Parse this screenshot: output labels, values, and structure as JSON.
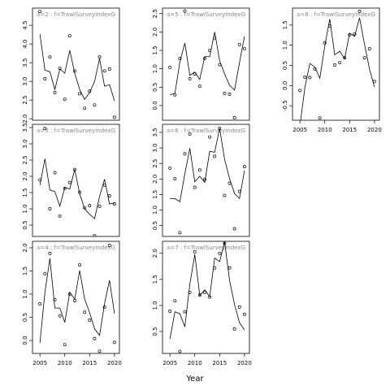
{
  "xlabel": "Year",
  "chart_data": [
    {
      "type": "line",
      "title": "a=2  :  f=TrawlSurveyIndexG",
      "x": [
        2005,
        2006,
        2007,
        2008,
        2009,
        2010,
        2011,
        2012,
        2013,
        2014,
        2015,
        2016,
        2017,
        2018,
        2019,
        2020
      ],
      "xlim": [
        2003.5,
        2021
      ],
      "ylim": [
        1.96,
        4.96
      ],
      "yticks": [
        {
          "value": 2,
          "label": "2.0"
        },
        2.5,
        {
          "value": 3,
          "label": "3.0"
        },
        3.5,
        {
          "value": 4,
          "label": "4.0"
        },
        4.5
      ],
      "series": [
        {
          "style": "points",
          "color": "#000000",
          "values": [
            4.87,
            3.07,
            3.65,
            2.7,
            3.35,
            2.52,
            4.22,
            3.28,
            2.67,
            2.28,
            2.74,
            2.37,
            3.65,
            3.28,
            3.33,
            2.04
          ]
        },
        {
          "style": "line",
          "color": "#000000",
          "values": [
            4.26,
            3.3,
            3.26,
            2.78,
            3.33,
            3.22,
            3.83,
            3.22,
            2.78,
            2.52,
            2.7,
            3.0,
            3.61,
            2.87,
            2.91,
            2.48
          ]
        }
      ]
    },
    {
      "type": "line",
      "title": "a=3  :  f=TrawlSurveyIndexG",
      "x": [
        2005,
        2006,
        2007,
        2008,
        2009,
        2010,
        2011,
        2012,
        2013,
        2014,
        2015,
        2016,
        2017,
        2018,
        2019,
        2020
      ],
      "xlim": [
        2003.5,
        2021
      ],
      "ylim": [
        0.15,
        3.6
      ],
      "yticks": [
        0.5,
        {
          "value": 1,
          "label": "1.0"
        },
        1.5,
        {
          "value": 2,
          "label": "2.0"
        },
        2.5,
        {
          "value": 3,
          "label": "3.0"
        },
        3.5
      ],
      "series": [
        {
          "style": "points",
          "color": "#000000",
          "values": [
            1.89,
            3.47,
            1.0,
            2.11,
            0.78,
            1.63,
            1.81,
            2.21,
            1.51,
            1.03,
            1.1,
            0.17,
            1.08,
            1.73,
            1.4,
            1.15
          ]
        },
        {
          "style": "line",
          "color": "#000000",
          "values": [
            1.73,
            2.54,
            1.58,
            1.53,
            1.08,
            1.66,
            1.61,
            2.21,
            1.46,
            1.0,
            0.83,
            0.7,
            1.38,
            1.91,
            1.15,
            1.18
          ]
        }
      ]
    },
    {
      "type": "line",
      "title": "a=4  :  f=TrawlSurveyIndexG",
      "x": [
        2005,
        2006,
        2007,
        2008,
        2009,
        2010,
        2011,
        2012,
        2013,
        2014,
        2015,
        2016,
        2017,
        2018,
        2019,
        2020
      ],
      "xlim": [
        2003.5,
        2021
      ],
      "xticks": [
        2005,
        2010,
        2015,
        2020
      ],
      "ylim": [
        -0.28,
        2.14
      ],
      "yticks": [
        {
          "value": 0,
          "label": "0.0"
        },
        0.5,
        {
          "value": 1,
          "label": "1.0"
        },
        1.5,
        {
          "value": 2,
          "label": "2.0"
        }
      ],
      "series": [
        {
          "style": "points",
          "color": "#000000",
          "values": [
            0.79,
            1.44,
            1.88,
            0.88,
            0.53,
            -0.09,
            1.0,
            0.86,
            1.63,
            0.61,
            0.44,
            0.04,
            -0.23,
            0.72,
            2.05,
            -0.04
          ]
        },
        {
          "style": "line",
          "color": "#000000",
          "values": [
            -0.05,
            1.04,
            1.77,
            0.7,
            0.7,
            0.39,
            1.04,
            0.89,
            1.51,
            0.89,
            0.6,
            0.25,
            0.11,
            0.79,
            1.3,
            0.58
          ]
        }
      ]
    },
    {
      "type": "line",
      "title": "a=5  :  f=TrawlSurveyIndexG",
      "x": [
        2005,
        2006,
        2007,
        2008,
        2009,
        2010,
        2011,
        2012,
        2013,
        2014,
        2015,
        2016,
        2017,
        2018,
        2019,
        2020
      ],
      "xlim": [
        2003.5,
        2021
      ],
      "ylim": [
        -0.4,
        2.65
      ],
      "yticks": [
        {
          "value": 0,
          "label": "0.0"
        },
        0.5,
        {
          "value": 1,
          "label": "1.0"
        },
        1.5,
        {
          "value": 2,
          "label": "2.0"
        },
        2.5
      ],
      "series": [
        {
          "style": "points",
          "color": "#000000",
          "values": [
            1.04,
            0.29,
            1.28,
            2.57,
            0.73,
            0.86,
            0.53,
            1.28,
            1.5,
            1.84,
            1.11,
            0.33,
            0.31,
            -0.33,
            1.66,
            1.55
          ]
        },
        {
          "style": "line",
          "color": "#000000",
          "values": [
            0.29,
            0.33,
            1.19,
            1.7,
            0.82,
            0.91,
            0.71,
            1.33,
            1.33,
            2.0,
            1.22,
            0.86,
            0.55,
            0.42,
            1.17,
            1.88
          ]
        }
      ]
    },
    {
      "type": "line",
      "title": "a=6  :  f=TrawlSurveyIndexG",
      "x": [
        2005,
        2006,
        2007,
        2008,
        2009,
        2010,
        2011,
        2012,
        2013,
        2014,
        2015,
        2016,
        2017,
        2018,
        2019,
        2020
      ],
      "xlim": [
        2003.5,
        2021
      ],
      "ylim": [
        0.15,
        3.76
      ],
      "yticks": [
        0.5,
        {
          "value": 1,
          "label": "1.0"
        },
        1.5,
        {
          "value": 2,
          "label": "2.0"
        },
        2.5,
        {
          "value": 3,
          "label": "3.0"
        },
        3.5
      ],
      "series": [
        {
          "style": "points",
          "color": "#000000",
          "values": [
            2.35,
            2.01,
            0.27,
            2.81,
            3.45,
            1.73,
            2.29,
            1.99,
            3.35,
            2.73,
            3.63,
            1.47,
            1.86,
            0.4,
            1.6,
            2.4
          ]
        },
        {
          "style": "line",
          "color": "#000000",
          "values": [
            1.37,
            1.37,
            1.27,
            2.17,
            2.99,
            1.91,
            2.09,
            1.89,
            2.89,
            2.86,
            3.63,
            2.63,
            2.01,
            1.53,
            1.37,
            2.27
          ]
        }
      ]
    },
    {
      "type": "line",
      "title": "a=7  :  f=TrawlSurveyIndexG",
      "x": [
        2005,
        2006,
        2007,
        2008,
        2009,
        2010,
        2011,
        2012,
        2013,
        2014,
        2015,
        2016,
        2017,
        2018,
        2019,
        2020
      ],
      "xlim": [
        2003.5,
        2021
      ],
      "xticks": [
        2005,
        2010,
        2015,
        2020
      ],
      "ylim": [
        0.08,
        2.23
      ],
      "yticks": [
        0.5,
        {
          "value": 1,
          "label": "1.0"
        },
        1.5,
        {
          "value": 2,
          "label": "2.0"
        }
      ],
      "series": [
        {
          "style": "points",
          "color": "#000000",
          "values": [
            0.89,
            1.09,
            0.12,
            0.88,
            1.25,
            2.03,
            1.2,
            1.25,
            1.16,
            1.72,
            2.0,
            2.19,
            1.72,
            0.55,
            0.97,
            0.83
          ]
        },
        {
          "style": "line",
          "color": "#000000",
          "values": [
            0.36,
            0.88,
            0.84,
            0.59,
            1.41,
            1.98,
            1.19,
            1.3,
            1.17,
            1.91,
            1.84,
            2.22,
            1.48,
            1.02,
            0.67,
            0.53
          ]
        }
      ]
    },
    {
      "type": "line",
      "title": "a=8  :  f=TrawlSurveyIndexG",
      "x": [
        2005,
        2006,
        2007,
        2008,
        2009,
        2010,
        2011,
        2012,
        2013,
        2014,
        2015,
        2016,
        2017,
        2018,
        2019,
        2020
      ],
      "xlim": [
        2003.5,
        2021
      ],
      "xticks": [
        2005,
        2010,
        2015,
        2020
      ],
      "ylim": [
        -0.86,
        1.92
      ],
      "yticks": [
        -0.5,
        {
          "value": 0,
          "label": "0.0"
        },
        0.5,
        {
          "value": 1,
          "label": "1.0"
        },
        1.5
      ],
      "series": [
        {
          "style": "points",
          "color": "#000000",
          "values": [
            -0.12,
            0.21,
            0.2,
            0.41,
            -0.8,
            1.06,
            1.48,
            0.51,
            0.57,
            0.69,
            1.26,
            1.28,
            1.84,
            0.69,
            0.91,
            0.1
          ]
        },
        {
          "style": "line",
          "color": "#000000",
          "values": [
            -1.0,
            -0.04,
            0.55,
            0.46,
            0.18,
            0.98,
            1.65,
            0.76,
            0.85,
            0.67,
            1.3,
            1.22,
            1.68,
            1.02,
            0.41,
            -0.04
          ]
        }
      ]
    }
  ]
}
